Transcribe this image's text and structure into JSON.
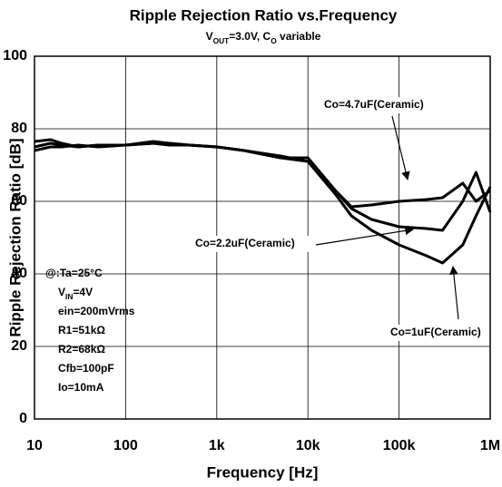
{
  "chart_data": {
    "type": "line",
    "title": "Ripple Rejection Ratio vs.Frequency",
    "subtitle": [
      "V",
      "OUT",
      "=3.0V, C",
      "O",
      " variable"
    ],
    "x_label": "Frequency [Hz]",
    "y_label": "Ripple Rejection Ratio [dB]",
    "log_x": true,
    "grid": true,
    "xlim": [
      10,
      1000000
    ],
    "xticks": [
      10,
      100,
      {
        "value": 1000,
        "label": "1k"
      },
      {
        "value": 10000,
        "label": "10k"
      },
      {
        "value": 100000,
        "label": "100k"
      },
      {
        "value": 1000000,
        "label": "1M"
      }
    ],
    "ylim": [
      0,
      100
    ],
    "yticks": [
      0,
      20,
      40,
      60,
      80,
      100
    ],
    "x": [
      10,
      15,
      20,
      30,
      50,
      100,
      200,
      300,
      500,
      1000,
      2000,
      5000,
      10000,
      20000,
      30000,
      50000,
      100000,
      200000,
      300000,
      500000,
      700000,
      1000000
    ],
    "series": [
      {
        "name": "Co=1uF(Ceramic)",
        "color": "#000000",
        "values": [
          75,
          76,
          75.5,
          75,
          75.5,
          75.5,
          76,
          76,
          75.5,
          75,
          74,
          72.5,
          71,
          62,
          56,
          52,
          48,
          45,
          43,
          48,
          56,
          64
        ]
      },
      {
        "name": "Co=2.2uF(Ceramic)",
        "color": "#000000",
        "values": [
          74,
          75,
          75,
          75.5,
          75,
          75.5,
          76,
          75.5,
          75.5,
          75,
          74,
          72,
          71,
          63,
          58,
          55,
          53,
          52.5,
          52,
          60,
          68,
          57
        ]
      },
      {
        "name": "Co=4.7uF(Ceramic)",
        "color": "#000000",
        "values": [
          76.5,
          77,
          76,
          75,
          75.5,
          75.5,
          76.5,
          76,
          75.5,
          75,
          74,
          72,
          72,
          63,
          58.5,
          59,
          60,
          60.5,
          61,
          65,
          60,
          63
        ]
      }
    ],
    "conditions": [
      [
        "@:Ta=25°C"
      ],
      [
        "V",
        "IN",
        "=4V"
      ],
      [
        "ein=200mVrms"
      ],
      [
        "R1=51kΩ"
      ],
      [
        "R2=68kΩ"
      ],
      [
        "Cfb=100pF"
      ],
      [
        "Io=10mA"
      ]
    ]
  }
}
